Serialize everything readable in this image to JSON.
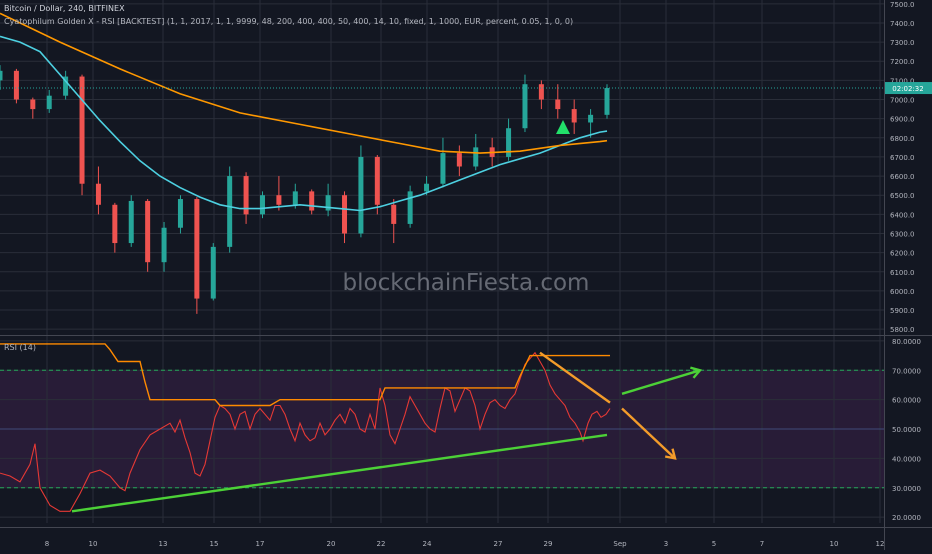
{
  "header": {
    "symbol_line": "Bitcoin / Dollar, 240, BITFINEX",
    "strategy_line": "Cyatophilum Golden X - RSI [BACKTEST] (1, 1, 2017, 1, 1, 9999, 48, 200, 400, 400, 50, 400, 14, 10, fixed, 1, 1000, EUR, percent, 0.05, 1, 0, 0)",
    "rsi_label": "RSI (14)"
  },
  "watermark": "blockchainFiesta.com",
  "colors": {
    "background": "#131722",
    "grid": "#2a2e39",
    "candle_up": "#26a69a",
    "candle_down": "#ef5350",
    "ma_fast": "#4dd0e1",
    "ma_slow": "#ff9800",
    "rsi_line": "#e53935",
    "rsi_band": "#ff8a00",
    "rsi_fill": "#2b1d3a",
    "rsi_level": "#26a65b",
    "trend_green": "#4cd137",
    "trend_orange": "#f39c2a",
    "price_badge": "#26a69a"
  },
  "chart_data": [
    {
      "type": "candlestick",
      "title": "Bitcoin / Dollar, 240, BITFINEX",
      "x_tick_labels": [
        "8",
        "10",
        "13",
        "15",
        "17",
        "20",
        "22",
        "24",
        "27",
        "29",
        "Sep",
        "3",
        "5",
        "7",
        "10",
        "12"
      ],
      "y_tick_labels": [
        "7500.0",
        "7400.0",
        "7300.0",
        "7200.0",
        "7100.0",
        "7000.0",
        "6900.0",
        "6800.0",
        "6700.0",
        "6600.0",
        "6500.0",
        "6400.0",
        "6300.0",
        "6200.0",
        "6100.0",
        "6000.0",
        "5900.0",
        "5800.0"
      ],
      "ylim": [
        5780,
        7520
      ],
      "last_price_label": "02:02:32",
      "last_price": 7060,
      "series": [
        {
          "name": "",
          "kind": "ma_fast",
          "points": [
            [
              0,
              7330
            ],
            [
              20,
              7300
            ],
            [
              40,
              7250
            ],
            [
              60,
              7130
            ],
            [
              80,
              7010
            ],
            [
              100,
              6890
            ],
            [
              120,
              6780
            ],
            [
              140,
              6680
            ],
            [
              160,
              6600
            ],
            [
              180,
              6540
            ],
            [
              200,
              6490
            ],
            [
              220,
              6450
            ],
            [
              240,
              6430
            ],
            [
              260,
              6430
            ],
            [
              280,
              6440
            ],
            [
              300,
              6450
            ],
            [
              320,
              6440
            ],
            [
              340,
              6430
            ],
            [
              360,
              6420
            ],
            [
              380,
              6440
            ],
            [
              400,
              6470
            ],
            [
              420,
              6500
            ],
            [
              440,
              6540
            ],
            [
              460,
              6580
            ],
            [
              480,
              6620
            ],
            [
              500,
              6660
            ],
            [
              520,
              6690
            ],
            [
              540,
              6720
            ],
            [
              560,
              6760
            ],
            [
              580,
              6800
            ],
            [
              600,
              6830
            ],
            [
              607,
              6835
            ]
          ]
        },
        {
          "name": "",
          "kind": "ma_slow",
          "points": [
            [
              0,
              7450
            ],
            [
              60,
              7300
            ],
            [
              120,
              7160
            ],
            [
              180,
              7030
            ],
            [
              240,
              6930
            ],
            [
              300,
              6870
            ],
            [
              360,
              6810
            ],
            [
              400,
              6770
            ],
            [
              440,
              6730
            ],
            [
              480,
              6720
            ],
            [
              520,
              6730
            ],
            [
              560,
              6760
            ],
            [
              600,
              6780
            ],
            [
              607,
              6785
            ]
          ]
        }
      ],
      "candles_ohlc_approx": [
        [
          0,
          7100,
          7180,
          7050,
          7150
        ],
        [
          2,
          7150,
          7160,
          6980,
          7000
        ],
        [
          4,
          7000,
          7010,
          6900,
          6950
        ],
        [
          6,
          6950,
          7050,
          6930,
          7020
        ],
        [
          8,
          7020,
          7150,
          7000,
          7120
        ],
        [
          10,
          7120,
          7130,
          6500,
          6560
        ],
        [
          12,
          6560,
          6650,
          6400,
          6450
        ],
        [
          14,
          6450,
          6460,
          6200,
          6250
        ],
        [
          16,
          6250,
          6500,
          6230,
          6470
        ],
        [
          18,
          6470,
          6480,
          6100,
          6150
        ],
        [
          20,
          6150,
          6360,
          6100,
          6330
        ],
        [
          22,
          6330,
          6500,
          6300,
          6480
        ],
        [
          24,
          6480,
          6490,
          5880,
          5960
        ],
        [
          26,
          5960,
          6250,
          5950,
          6230
        ],
        [
          28,
          6230,
          6650,
          6200,
          6600
        ],
        [
          30,
          6600,
          6620,
          6350,
          6400
        ],
        [
          32,
          6400,
          6520,
          6380,
          6500
        ],
        [
          34,
          6500,
          6600,
          6420,
          6450
        ],
        [
          36,
          6450,
          6560,
          6430,
          6520
        ],
        [
          38,
          6520,
          6530,
          6400,
          6420
        ],
        [
          40,
          6420,
          6560,
          6390,
          6500
        ],
        [
          42,
          6500,
          6520,
          6250,
          6300
        ],
        [
          44,
          6300,
          6760,
          6280,
          6700
        ],
        [
          46,
          6700,
          6710,
          6400,
          6450
        ],
        [
          48,
          6450,
          6480,
          6250,
          6350
        ],
        [
          50,
          6350,
          6550,
          6330,
          6520
        ],
        [
          52,
          6520,
          6600,
          6500,
          6560
        ],
        [
          54,
          6560,
          6800,
          6540,
          6720
        ],
        [
          56,
          6720,
          6760,
          6600,
          6650
        ],
        [
          58,
          6650,
          6820,
          6630,
          6750
        ],
        [
          60,
          6750,
          6800,
          6650,
          6700
        ],
        [
          62,
          6700,
          6900,
          6680,
          6850
        ],
        [
          64,
          6850,
          7130,
          6830,
          7080
        ],
        [
          66,
          7080,
          7100,
          6950,
          7000
        ],
        [
          68,
          7000,
          7080,
          6900,
          6950
        ],
        [
          70,
          6950,
          7000,
          6820,
          6880
        ],
        [
          72,
          6880,
          6950,
          6800,
          6920
        ],
        [
          74,
          6920,
          7080,
          6900,
          7060
        ]
      ],
      "annotations": [
        "buy-marker-triangle"
      ]
    },
    {
      "type": "line",
      "title": "RSI (14)",
      "y_tick_labels": [
        "80.0000",
        "70.0000",
        "60.0000",
        "50.0000",
        "40.0000",
        "30.0000",
        "20.0000"
      ],
      "ylim": [
        18,
        81
      ],
      "levels": [
        70,
        50,
        30
      ],
      "series": [
        {
          "name": "",
          "kind": "rsi",
          "points": [
            [
              0,
              35
            ],
            [
              10,
              34
            ],
            [
              20,
              32
            ],
            [
              30,
              38
            ],
            [
              35,
              45
            ],
            [
              40,
              30
            ],
            [
              50,
              24
            ],
            [
              60,
              22
            ],
            [
              70,
              22
            ],
            [
              80,
              28
            ],
            [
              90,
              35
            ],
            [
              100,
              36
            ],
            [
              110,
              34
            ],
            [
              120,
              30
            ],
            [
              125,
              29
            ],
            [
              130,
              35
            ],
            [
              140,
              43
            ],
            [
              150,
              48
            ],
            [
              160,
              50
            ],
            [
              170,
              52
            ],
            [
              175,
              49
            ],
            [
              180,
              53
            ],
            [
              185,
              47
            ],
            [
              190,
              42
            ],
            [
              195,
              35
            ],
            [
              200,
              34
            ],
            [
              205,
              38
            ],
            [
              210,
              46
            ],
            [
              215,
              54
            ],
            [
              220,
              58
            ],
            [
              225,
              57
            ],
            [
              230,
              55
            ],
            [
              235,
              50
            ],
            [
              240,
              55
            ],
            [
              245,
              56
            ],
            [
              250,
              50
            ],
            [
              255,
              55
            ],
            [
              260,
              57
            ],
            [
              265,
              55
            ],
            [
              270,
              53
            ],
            [
              275,
              58
            ],
            [
              280,
              58
            ],
            [
              285,
              55
            ],
            [
              290,
              50
            ],
            [
              295,
              46
            ],
            [
              300,
              52
            ],
            [
              305,
              48
            ],
            [
              310,
              46
            ],
            [
              315,
              47
            ],
            [
              320,
              52
            ],
            [
              325,
              48
            ],
            [
              330,
              50
            ],
            [
              335,
              53
            ],
            [
              340,
              55
            ],
            [
              345,
              52
            ],
            [
              350,
              57
            ],
            [
              355,
              55
            ],
            [
              360,
              50
            ],
            [
              365,
              49
            ],
            [
              370,
              55
            ],
            [
              375,
              50
            ],
            [
              380,
              64
            ],
            [
              385,
              58
            ],
            [
              390,
              48
            ],
            [
              395,
              45
            ],
            [
              400,
              50
            ],
            [
              405,
              55
            ],
            [
              410,
              61
            ],
            [
              415,
              58
            ],
            [
              420,
              55
            ],
            [
              425,
              52
            ],
            [
              430,
              50
            ],
            [
              435,
              49
            ],
            [
              440,
              57
            ],
            [
              445,
              64
            ],
            [
              450,
              63
            ],
            [
              455,
              56
            ],
            [
              460,
              60
            ],
            [
              465,
              64
            ],
            [
              470,
              63
            ],
            [
              475,
              58
            ],
            [
              480,
              50
            ],
            [
              485,
              55
            ],
            [
              490,
              59
            ],
            [
              495,
              60
            ],
            [
              500,
              58
            ],
            [
              505,
              57
            ],
            [
              510,
              60
            ],
            [
              515,
              62
            ],
            [
              520,
              67
            ],
            [
              525,
              72
            ],
            [
              530,
              74
            ],
            [
              535,
              76
            ],
            [
              540,
              73
            ],
            [
              545,
              70
            ],
            [
              550,
              65
            ],
            [
              555,
              62
            ],
            [
              560,
              60
            ],
            [
              565,
              58
            ],
            [
              570,
              54
            ],
            [
              575,
              52
            ],
            [
              580,
              49
            ],
            [
              583,
              46
            ],
            [
              588,
              52
            ],
            [
              592,
              55
            ],
            [
              597,
              56
            ],
            [
              601,
              54
            ],
            [
              606,
              55
            ],
            [
              610,
              57
            ]
          ]
        },
        {
          "name": "",
          "kind": "rsi_high_band",
          "points": [
            [
              0,
              79
            ],
            [
              105,
              79
            ],
            [
              110,
              77
            ],
            [
              118,
              73
            ],
            [
              140,
              73
            ],
            [
              145,
              66
            ],
            [
              150,
              60
            ],
            [
              215,
              60
            ],
            [
              220,
              58
            ],
            [
              270,
              58
            ],
            [
              280,
              60
            ],
            [
              380,
              60
            ],
            [
              385,
              64
            ],
            [
              515,
              64
            ],
            [
              520,
              68
            ],
            [
              530,
              75
            ],
            [
              610,
              75
            ]
          ]
        }
      ],
      "trendlines": [
        {
          "color": "trend_green",
          "from": [
            72,
            22
          ],
          "to": [
            607,
            48
          ]
        },
        {
          "color": "trend_orange",
          "from": [
            540,
            76
          ],
          "to": [
            610,
            59
          ]
        }
      ],
      "projections": [
        {
          "color": "trend_green",
          "from": [
            622,
            62
          ],
          "to": [
            700,
            70
          ]
        },
        {
          "color": "trend_orange",
          "from": [
            622,
            57
          ],
          "to": [
            675,
            40
          ]
        }
      ]
    }
  ]
}
